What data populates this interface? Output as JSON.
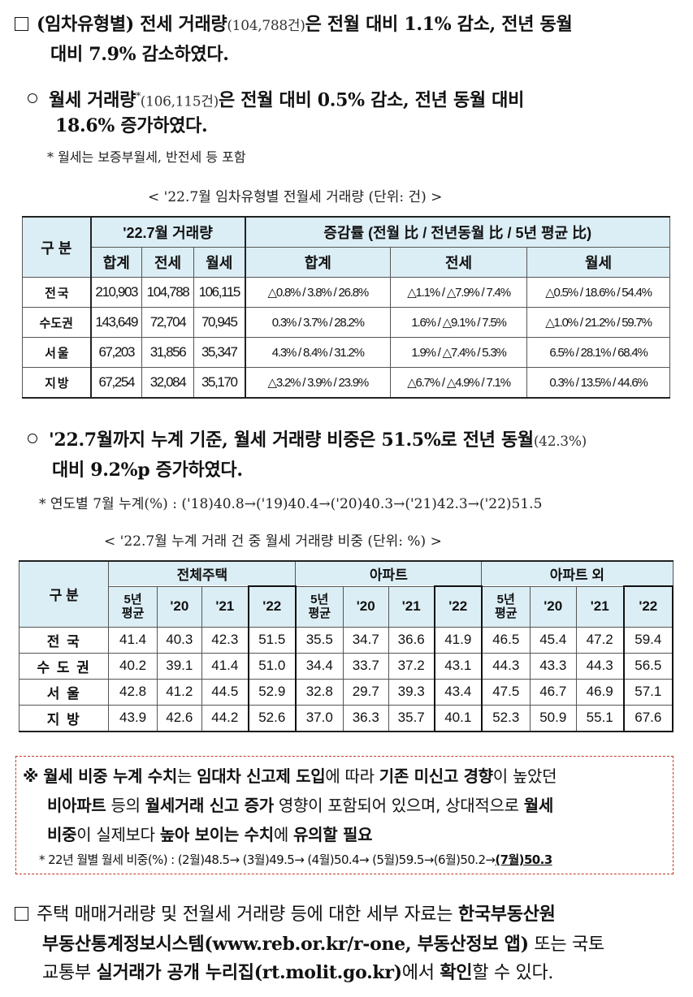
{
  "para1": {
    "lead": "(임차유형별) 전세 거래량",
    "count": "(104,788건)",
    "rest": "은 전월 대비 1.1% 감소, 전년 동월",
    "line2": "대비 7.9% 감소하였다."
  },
  "para2": {
    "lead": "월세 거래량",
    "star": "*",
    "count": "(106,115건)",
    "rest": "은 전월 대비 0.5% 감소, 전년 동월 대비",
    "line2": "18.6% 증가하였다.",
    "footnote": "* 월세는 보증부월세, 반전세 등 포함"
  },
  "table1": {
    "caption": "< '22.7월 임차유형별 전월세 거래량 (단위: 건) >",
    "corner": "구 분",
    "group1": "'22.7월 거래량",
    "group2": "증감률 (전월 比 / 전년동월 比 / 5년 평균 比)",
    "sub": [
      "합계",
      "전세",
      "월세",
      "합계",
      "전세",
      "월세"
    ],
    "rows": [
      {
        "label": "전 국",
        "cells": [
          "210,903",
          "104,788",
          "106,115",
          "△0.8% / 3.8% / 26.8%",
          "△1.1% / △7.9% / 7.4%",
          "△0.5% / 18.6% / 54.4%"
        ]
      },
      {
        "label": "수도권",
        "cells": [
          "143,649",
          "72,704",
          "70,945",
          "0.3% / 3.7% / 28.2%",
          "1.6% / △9.1% / 7.5%",
          "△1.0% / 21.2% / 59.7%"
        ]
      },
      {
        "label": "서 울",
        "cells": [
          "67,203",
          "31,856",
          "35,347",
          "4.3% / 8.4% / 31.2%",
          "1.9% / △7.4% / 5.3%",
          "6.5% / 28.1% / 68.4%"
        ]
      },
      {
        "label": "지 방",
        "cells": [
          "67,254",
          "32,084",
          "35,170",
          "△3.2% / 3.9% / 23.9%",
          "△6.7% / △4.9% / 7.1%",
          "0.3% / 13.5% / 44.6%"
        ]
      }
    ]
  },
  "para3": {
    "lead": "'22.7월까지 누계 기준, 월세 거래량 비중은 51.5%로 전년 동월",
    "prev": "(42.3%)",
    "line2": "대비 9.2%p 증가하였다.",
    "footnote": "* 연도별 7월 누계(%) : ('18)40.8→('19)40.4→('20)40.3→('21)42.3→('22)51.5"
  },
  "table2": {
    "caption": "< '22.7월 누계 거래 건 중 월세 거래량 비중 (단위: %) >",
    "corner": "구 분",
    "groups": [
      "전체주택",
      "아파트",
      "아파트 외"
    ],
    "sub_avg_top": "5년",
    "sub_avg_bottom": "평균",
    "sub_years": [
      "'20",
      "'21",
      "'22"
    ],
    "rows": [
      {
        "label": "전 국",
        "cells": [
          "41.4",
          "40.3",
          "42.3",
          "51.5",
          "35.5",
          "34.7",
          "36.6",
          "41.9",
          "46.5",
          "45.4",
          "47.2",
          "59.4"
        ]
      },
      {
        "label": "수 도 권",
        "cells": [
          "40.2",
          "39.1",
          "41.4",
          "51.0",
          "34.4",
          "33.7",
          "37.2",
          "43.1",
          "44.3",
          "43.3",
          "44.3",
          "56.5"
        ]
      },
      {
        "label": "서 울",
        "cells": [
          "42.8",
          "41.2",
          "44.5",
          "52.9",
          "32.8",
          "29.7",
          "39.3",
          "43.4",
          "47.5",
          "46.7",
          "46.9",
          "57.1"
        ]
      },
      {
        "label": "지 방",
        "cells": [
          "43.9",
          "42.6",
          "44.2",
          "52.6",
          "37.0",
          "36.3",
          "35.7",
          "40.1",
          "52.3",
          "50.9",
          "55.1",
          "67.6"
        ]
      }
    ]
  },
  "notice": {
    "mark": "※",
    "l1a": "월세 비중 누계 수치",
    "l1b": "는 ",
    "l1c": "임대차 신고제 도입",
    "l1d": "에 따라 ",
    "l1e": "기존 미신고 경향",
    "l1f": "이 높았던",
    "l2a": "비아파트",
    "l2b": " 등의 ",
    "l2c": "월세거래 신고 증가",
    "l2d": " 영향이 포함되어 있으며, 상대적으로 ",
    "l2e": "월세",
    "l3a": "비중",
    "l3b": "이 실제보다 ",
    "l3c": "높아 보이는 수치",
    "l3d": "에 ",
    "l3e": "유의할 필요",
    "footnote": "* 22년 월별 월세 비중(%) : (2월)48.5→ (3월)49.5→ (4월)50.4→ (5월)59.5→(6월)50.2→",
    "footnote_last": "(7월)50.3"
  },
  "para4": {
    "l1a": "주택 매매거래량 및 전월세 거래량 등에 대한 세부 자료는 ",
    "l1b": "한국부동산원",
    "l2a": "부동산통계정보시스템(www.reb.or.kr/r-one, 부동산정보 앱)",
    "l2b": " 또는 국토",
    "l3a": "교통부 ",
    "l3b": "실거래가 공개 누리집(rt.molit.go.kr)",
    "l3c": "에서 ",
    "l3d": "확인",
    "l3e": "할 수 있다."
  }
}
